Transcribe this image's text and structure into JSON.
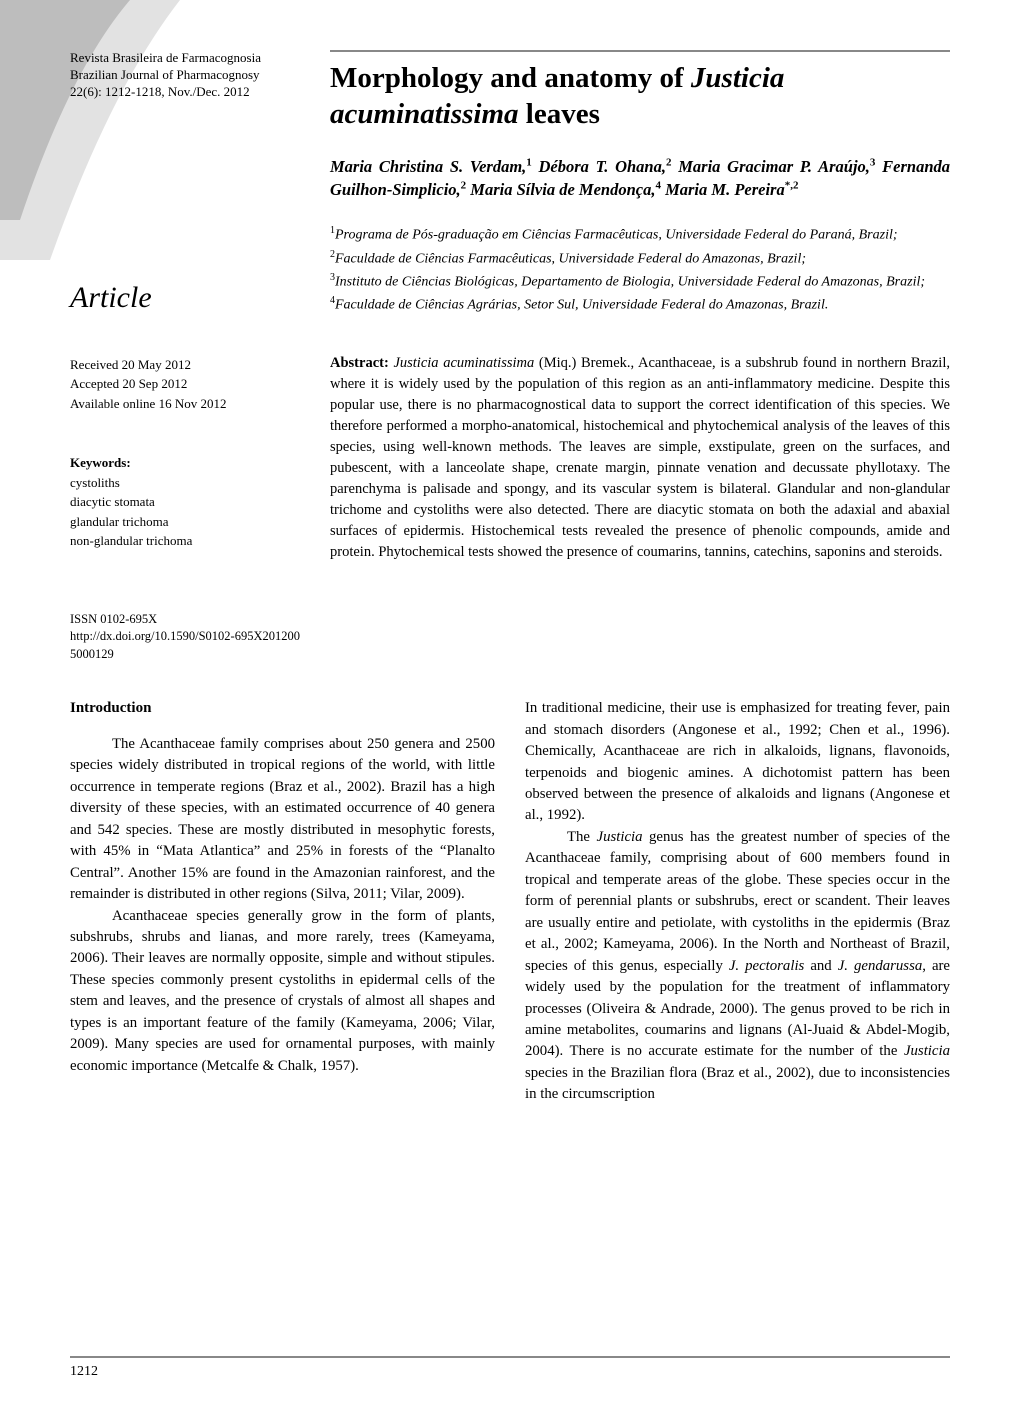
{
  "journal": {
    "name_pt": "Revista Brasileira de Farmacognosia",
    "name_en": "Brazilian Journal of Pharmacognosy",
    "issue": "22(6): 1212-1218, Nov./Dec. 2012"
  },
  "article_label": "Article",
  "meta": {
    "received": "Received 20 May 2012",
    "accepted": "Accepted 20 Sep 2012",
    "online": "Available online 16 Nov 2012"
  },
  "keywords": {
    "label": "Keywords:",
    "items": [
      "cystoliths",
      " diacytic stomata",
      " glandular trichoma",
      "non-glandular trichoma"
    ]
  },
  "issn": {
    "issn": "ISSN 0102-695X",
    "doi": "http://dx.doi.org/10.1590/S0102-695X2012005000129"
  },
  "title": {
    "pre": "Morphology and anatomy of ",
    "italic": "Justicia acuminatissima",
    "post": " leaves"
  },
  "authors_html": "Maria Christina S. Verdam,<sup>1</sup> Débora T. Ohana,<sup>2</sup> Maria Gracimar P. Araújo,<sup>3</sup> Fernanda Guilhon-Simplicio,<sup>2</sup> Maria Sílvia de Mendonça,<sup>4</sup> Maria M. Pereira<sup>*,2</sup>",
  "affiliations": [
    "<sup>1</sup>Programa de Pós-graduação em Ciências Farmacêuticas, Universidade Federal do Paraná, Brazil;",
    "<sup>2</sup>Faculdade de Ciências Farmacêuticas, Universidade Federal do Amazonas, Brazil;",
    "<sup>3</sup>Instituto de Ciências Biológicas, Departamento de Biologia, Universidade Federal do Amazonas, Brazil;",
    "<sup>4</sup>Faculdade de Ciências Agrárias, Setor Sul, Universidade Federal do Amazonas, Brazil."
  ],
  "abstract": {
    "label": "Abstract:",
    "text": " <span class=\"italic\">Justicia acuminatissima</span> (Miq.) Bremek., Acanthaceae, is a subshrub found in northern Brazil, where it is widely used by the population of this region as an anti-inflammatory medicine. Despite this popular use, there is no pharmacognostical data to support the correct identification of this species. We therefore performed a morpho-anatomical, histochemical and phytochemical analysis of the leaves of this species, using well-known methods. The leaves are simple, exstipulate, green on the surfaces, and pubescent, with a lanceolate shape, crenate margin, pinnate venation and decussate phyllotaxy. The parenchyma is palisade and spongy, and its vascular system is bilateral. Glandular and non-glandular trichome and cystoliths were also detected. There are diacytic stomata on both the adaxial and abaxial surfaces of epidermis. Histochemical tests revealed the presence of phenolic compounds, amide and protein. Phytochemical tests showed the presence of coumarins, tannins, catechins, saponins and steroids."
  },
  "intro_head": "Introduction",
  "body_left": [
    "<span class=\"indent\"></span>The Acanthaceae family comprises about 250 genera and 2500 species widely distributed in tropical regions of the world, with little occurrence in temperate regions (Braz et al., 2002). Brazil has a high diversity of these species, with an estimated occurrence of 40 genera and 542 species. These are mostly distributed in mesophytic forests, with 45% in “Mata Atlantica” and 25% in forests of the “Planalto Central”. Another 15% are found in the Amazonian rainforest, and the remainder is distributed in other regions (Silva, 2011; Vilar, 2009).",
    "<span class=\"indent\"></span>Acanthaceae species generally grow in the form of plants, subshrubs, shrubs and lianas, and more rarely, trees (Kameyama, 2006). Their leaves are normally opposite, simple and without stipules. These species commonly present cystoliths in epidermal cells of the stem and leaves, and the presence of crystals of almost all shapes and types is an important feature of the family (Kameyama, 2006; Vilar, 2009). Many species are used for ornamental purposes, with mainly economic importance (Metcalfe & Chalk, 1957)."
  ],
  "body_right": [
    "In traditional medicine, their use is emphasized for treating fever, pain and stomach disorders (Angonese et al., 1992; Chen et al., 1996). Chemically, Acanthaceae are rich in alkaloids, lignans, flavonoids, terpenoids and biogenic amines. A dichotomist pattern has been observed between the presence of alkaloids and lignans (Angonese et al., 1992).",
    "<span class=\"indent\"></span>The <span class=\"italic\">Justicia</span> genus has the greatest number of species of the Acanthaceae family, comprising about of 600 members found in tropical and temperate areas of the globe. These species occur in the form of perennial plants or subshrubs, erect or scandent. Their leaves are usually entire and petiolate, with cystoliths in the epidermis (Braz et al., 2002; Kameyama, 2006). In the North and Northeast of Brazil, species of this genus, especially <span class=\"italic\">J. pectoralis</span> and <span class=\"italic\">J. gendarussa</span>, are widely used by the population for the treatment of inflammatory processes (Oliveira & Andrade, 2000). The genus proved to be rich in amine metabolites, coumarins and lignans (Al-Juaid & Abdel-Mogib, 2004). There is no accurate estimate for the number of the <span class=\"italic\">Justicia</span> species in the Brazilian flora (Braz et al., 2002), due to inconsistencies in the circumscription"
  ],
  "page_number": "1212",
  "colors": {
    "rule": "#888888",
    "wedge_dark": "#3a3a3a",
    "wedge_light": "#d9d9d9"
  }
}
